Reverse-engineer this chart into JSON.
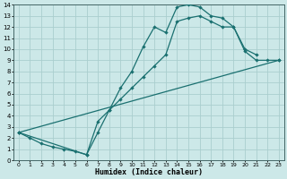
{
  "xlabel": "Humidex (Indice chaleur)",
  "xlim": [
    -0.5,
    23.5
  ],
  "ylim": [
    0,
    14
  ],
  "background_color": "#cce8e8",
  "grid_color": "#aacece",
  "line_color": "#1a7070",
  "curve1_x": [
    0,
    1,
    2,
    3,
    4,
    5,
    6,
    7,
    8,
    9,
    10,
    11,
    12,
    13,
    14,
    15,
    16,
    17,
    18,
    19,
    20,
    21
  ],
  "curve1_y": [
    2.5,
    2.0,
    1.5,
    1.2,
    1.0,
    0.8,
    0.5,
    2.5,
    4.5,
    6.5,
    8.0,
    10.2,
    12.0,
    11.5,
    13.8,
    14.0,
    13.8,
    13.0,
    12.8,
    12.0,
    10.0,
    9.5
  ],
  "curve2_x": [
    0,
    6,
    7,
    8,
    9,
    10,
    11,
    12,
    13,
    14,
    15,
    16,
    17,
    18,
    19,
    20,
    21,
    22,
    23
  ],
  "curve2_y": [
    2.5,
    0.5,
    3.5,
    4.5,
    5.5,
    6.5,
    7.5,
    8.5,
    9.5,
    12.5,
    12.8,
    13.0,
    12.5,
    12.0,
    12.0,
    9.8,
    9.0,
    9.0,
    9.0
  ],
  "curve3_x": [
    0,
    23
  ],
  "curve3_y": [
    2.5,
    9.0
  ]
}
